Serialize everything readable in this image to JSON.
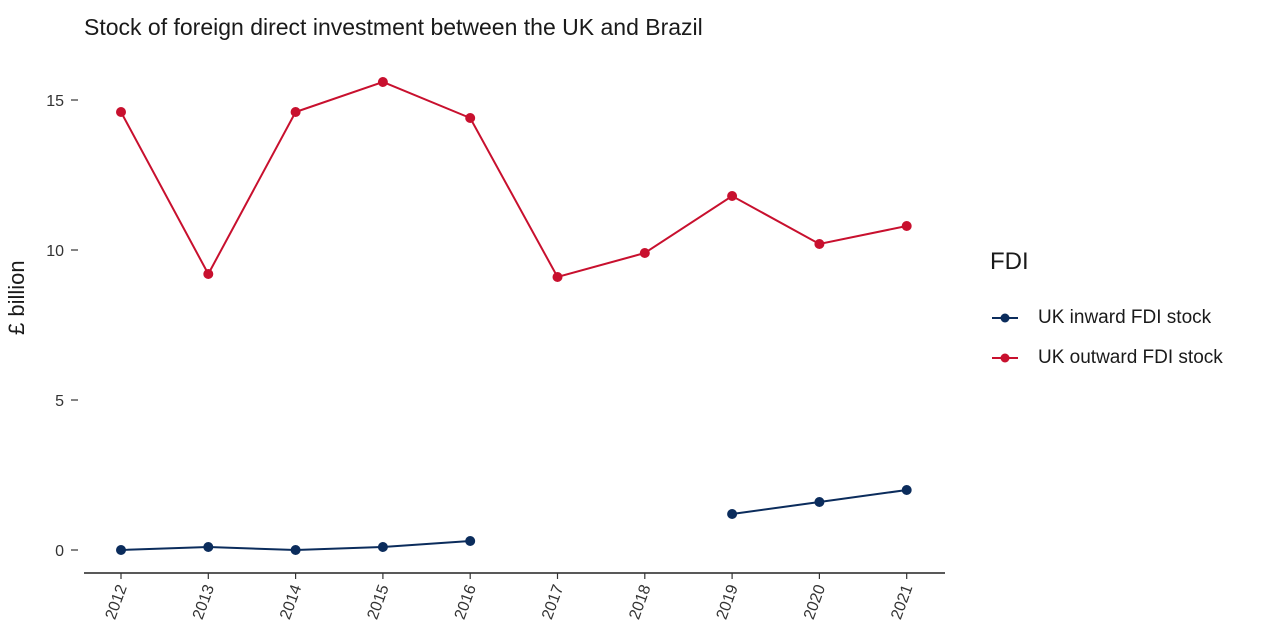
{
  "chart_data": {
    "type": "line",
    "title": "Stock of foreign direct investment between the UK and Brazil",
    "xlabel": "",
    "ylabel": "£ billion",
    "categories": [
      "2012",
      "2013",
      "2014",
      "2015",
      "2016",
      "2017",
      "2018",
      "2019",
      "2020",
      "2021"
    ],
    "yticks": [
      0,
      5,
      10,
      15
    ],
    "ylim": [
      -0.8,
      16.2
    ],
    "legend": {
      "title": "FDI",
      "position": "right"
    },
    "series": [
      {
        "name": "UK inward FDI stock",
        "color": "#0b2c5c",
        "values": [
          0.0,
          0.1,
          0.0,
          0.1,
          0.3,
          null,
          null,
          1.2,
          1.6,
          2.0
        ]
      },
      {
        "name": "UK outward FDI stock",
        "color": "#c8102e",
        "values": [
          14.6,
          9.2,
          14.6,
          15.6,
          14.4,
          9.1,
          9.9,
          11.8,
          10.2,
          10.8
        ]
      }
    ],
    "grid": false
  }
}
